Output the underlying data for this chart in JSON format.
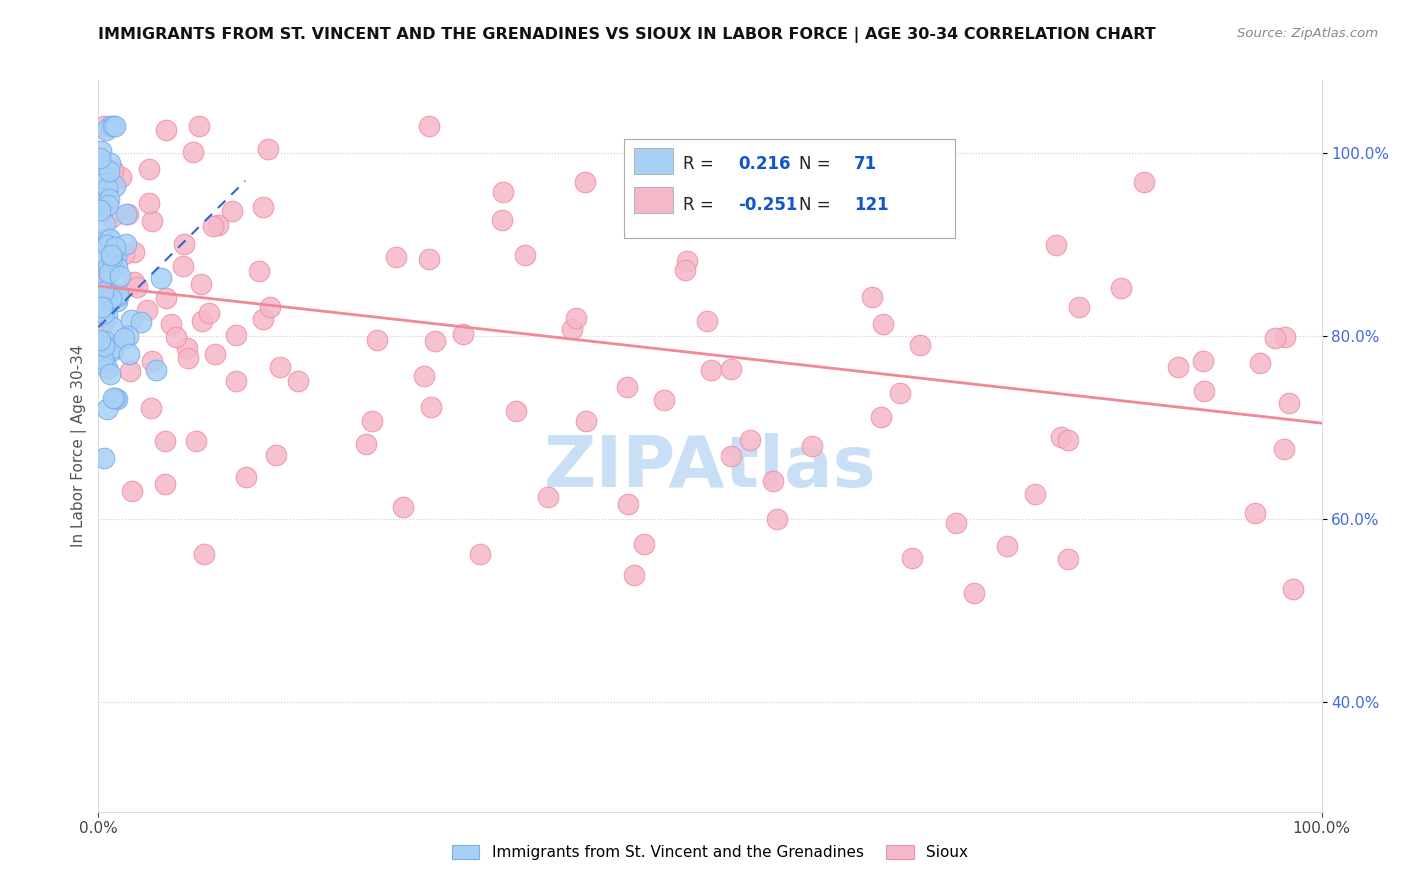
{
  "title": "IMMIGRANTS FROM ST. VINCENT AND THE GRENADINES VS SIOUX IN LABOR FORCE | AGE 30-34 CORRELATION CHART",
  "source": "Source: ZipAtlas.com",
  "ylabel": "In Labor Force | Age 30-34",
  "xlim": [
    0.0,
    1.0
  ],
  "ylim": [
    0.28,
    1.08
  ],
  "blue_R": 0.216,
  "blue_N": 71,
  "pink_R": -0.251,
  "pink_N": 121,
  "blue_color": "#a8d0f5",
  "pink_color": "#f5b8c8",
  "blue_edge_color": "#7aadec",
  "pink_edge_color": "#f090a8",
  "blue_trend_color": "#3366cc",
  "pink_trend_color": "#f08898",
  "legend_label_blue": "Immigrants from St. Vincent and the Grenadines",
  "legend_label_pink": "Sioux",
  "watermark_text": "ZIPAtlas",
  "watermark_color": "#c8dff5",
  "y_ticks": [
    0.4,
    0.6,
    0.8,
    1.0
  ],
  "y_tick_labels": [
    "40.0%",
    "60.0%",
    "80.0%",
    "100.0%"
  ],
  "pink_trend_x0": 0.0,
  "pink_trend_x1": 1.0,
  "pink_trend_y0": 0.855,
  "pink_trend_y1": 0.705,
  "blue_trend_x0": 0.0,
  "blue_trend_x1": 0.12,
  "blue_trend_y0": 0.81,
  "blue_trend_y1": 0.97
}
